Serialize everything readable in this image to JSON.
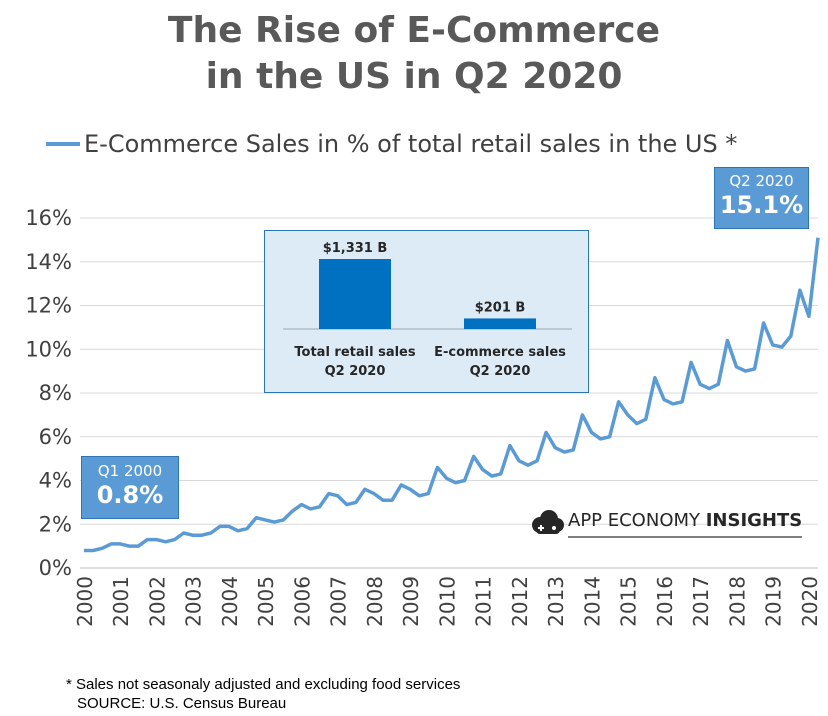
{
  "title": {
    "line1": "The Rise of E-Commerce",
    "line2": "in the US in Q2 2020"
  },
  "chart_data": {
    "type": "line",
    "series": [
      {
        "name": "E-Commerce Sales in % of total retail sales in the US *",
        "color": "#5b9bd5",
        "values": [
          0.8,
          0.8,
          0.9,
          1.1,
          1.1,
          1.0,
          1.0,
          1.3,
          1.3,
          1.2,
          1.3,
          1.6,
          1.5,
          1.5,
          1.6,
          1.9,
          1.9,
          1.7,
          1.8,
          2.3,
          2.2,
          2.1,
          2.2,
          2.6,
          2.9,
          2.7,
          2.8,
          3.4,
          3.3,
          2.9,
          3.0,
          3.6,
          3.4,
          3.1,
          3.1,
          3.8,
          3.6,
          3.3,
          3.4,
          4.6,
          4.1,
          3.9,
          4.0,
          5.1,
          4.5,
          4.2,
          4.3,
          5.6,
          4.9,
          4.7,
          4.9,
          6.2,
          5.5,
          5.3,
          5.4,
          7.0,
          6.2,
          5.9,
          6.0,
          7.6,
          7.0,
          6.6,
          6.8,
          8.7,
          7.7,
          7.5,
          7.6,
          9.4,
          8.4,
          8.2,
          8.4,
          10.4,
          9.2,
          9.0,
          9.1,
          11.2,
          10.2,
          10.1,
          10.6,
          12.7,
          11.5,
          15.1
        ]
      }
    ],
    "x_start": "Q1 2000",
    "x_end": "Q2 2020",
    "xticks": [
      "2000",
      "2001",
      "2002",
      "2003",
      "2004",
      "2005",
      "2006",
      "2007",
      "2008",
      "2009",
      "2010",
      "2011",
      "2012",
      "2013",
      "2014",
      "2015",
      "2016",
      "2017",
      "2018",
      "2019",
      "2020"
    ],
    "yticks": [
      "0%",
      "2%",
      "4%",
      "6%",
      "8%",
      "10%",
      "12%",
      "14%",
      "16%"
    ],
    "ylim": [
      0,
      16
    ],
    "grid": true,
    "legend_position": "top",
    "callouts": {
      "start": {
        "label": "Q1 2000",
        "value": "0.8%"
      },
      "end": {
        "label": "Q2 2020",
        "value": "15.1%"
      }
    },
    "inset": {
      "type": "bar",
      "color": "#0070c0",
      "categories": [
        "Total retail sales\nQ2 2020",
        "E-commerce sales\nQ2 2020"
      ],
      "category_lines": [
        [
          "Total retail sales",
          "Q2 2020"
        ],
        [
          "E-commerce sales",
          "Q2 2020"
        ]
      ],
      "values": [
        1331,
        201
      ],
      "value_labels": [
        "$1,331 B",
        "$201 B"
      ]
    }
  },
  "logo": {
    "text_regular": "APP ECONOMY ",
    "text_bold": "INSIGHTS"
  },
  "footnote": {
    "line1": "* Sales not seasonaly adjusted and excluding food services",
    "line2": "SOURCE: U.S. Census Bureau"
  }
}
